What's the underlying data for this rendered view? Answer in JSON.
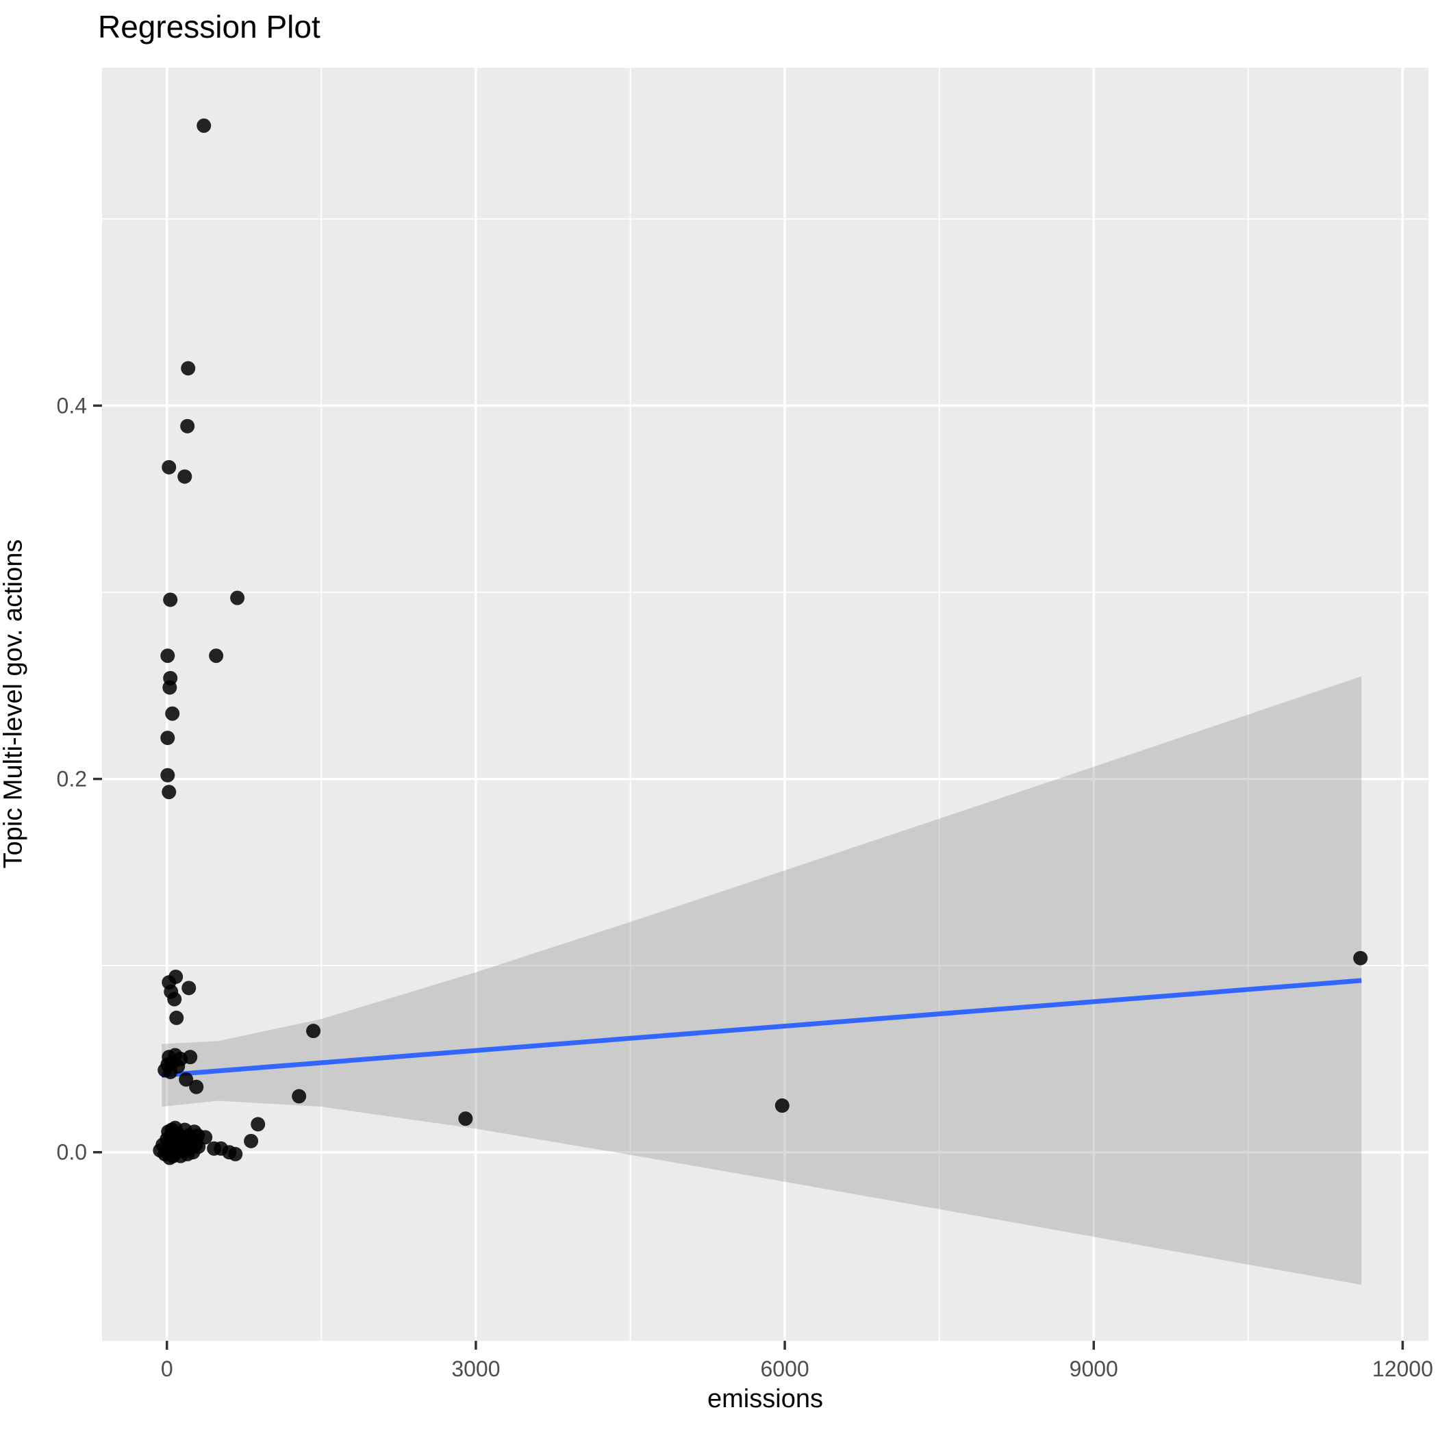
{
  "page": {
    "background": "#FFFFFF"
  },
  "chart_data": {
    "type": "scatter",
    "title": "Regression Plot",
    "xlabel": "emissions",
    "ylabel": "Topic Multi-level gov. actions",
    "legend": "none",
    "grid": "on",
    "x_axis": {
      "range": [
        -630,
        12250
      ],
      "ticks": [
        {
          "value": 0,
          "label": "0"
        },
        {
          "value": 3000,
          "label": "3000"
        },
        {
          "value": 6000,
          "label": "6000"
        },
        {
          "value": 9000,
          "label": "9000"
        },
        {
          "value": 12000,
          "label": "12000"
        }
      ],
      "minor_ticks": [
        1500,
        4500,
        7500,
        10500
      ]
    },
    "y_axis": {
      "range": [
        -0.101,
        0.581
      ],
      "ticks": [
        {
          "value": 0.0,
          "label": "0.0"
        },
        {
          "value": 0.2,
          "label": "0.2"
        },
        {
          "value": 0.4,
          "label": "0.4"
        }
      ],
      "minor_ticks": [
        0.1,
        0.3,
        0.5
      ]
    },
    "points": [
      [
        359,
        0.55
      ],
      [
        206,
        0.42
      ],
      [
        199,
        0.389
      ],
      [
        20,
        0.367
      ],
      [
        173,
        0.362
      ],
      [
        33,
        0.296
      ],
      [
        684,
        0.297
      ],
      [
        7,
        0.266
      ],
      [
        478,
        0.266
      ],
      [
        33,
        0.254
      ],
      [
        27,
        0.249
      ],
      [
        53,
        0.235
      ],
      [
        7,
        0.222
      ],
      [
        7,
        0.202
      ],
      [
        20,
        0.193
      ],
      [
        86,
        0.094
      ],
      [
        20,
        0.091
      ],
      [
        213,
        0.088
      ],
      [
        40,
        0.086
      ],
      [
        73,
        0.082
      ],
      [
        93,
        0.072
      ],
      [
        1422,
        0.065
      ],
      [
        -20,
        0.044
      ],
      [
        7,
        0.047
      ],
      [
        20,
        0.051
      ],
      [
        33,
        0.043
      ],
      [
        53,
        0.048
      ],
      [
        80,
        0.052
      ],
      [
        106,
        0.046
      ],
      [
        133,
        0.05
      ],
      [
        226,
        0.051
      ],
      [
        186,
        0.039
      ],
      [
        286,
        0.035
      ],
      [
        1283,
        0.03
      ],
      [
        5975,
        0.025
      ],
      [
        2900,
        0.018
      ],
      [
        884,
        0.015
      ],
      [
        817,
        0.006
      ],
      [
        665,
        -0.001
      ],
      [
        11590,
        0.104
      ],
      [
        -66,
        0.001
      ],
      [
        -40,
        0.004
      ],
      [
        -20,
        -0.001
      ],
      [
        0,
        0.007
      ],
      [
        7,
        0.0
      ],
      [
        13,
        0.011
      ],
      [
        20,
        0.003
      ],
      [
        27,
        -0.003
      ],
      [
        33,
        0.008
      ],
      [
        40,
        0.001
      ],
      [
        47,
        0.012
      ],
      [
        53,
        0.005
      ],
      [
        60,
        -0.002
      ],
      [
        66,
        0.009
      ],
      [
        73,
        0.002
      ],
      [
        80,
        0.013
      ],
      [
        86,
        0.006
      ],
      [
        93,
        0.0
      ],
      [
        106,
        0.01
      ],
      [
        120,
        0.003
      ],
      [
        133,
        -0.002
      ],
      [
        146,
        0.008
      ],
      [
        160,
        0.001
      ],
      [
        173,
        0.012
      ],
      [
        186,
        0.005
      ],
      [
        200,
        -0.001
      ],
      [
        213,
        0.009
      ],
      [
        226,
        0.002
      ],
      [
        240,
        0.007
      ],
      [
        253,
        0.0
      ],
      [
        266,
        0.011
      ],
      [
        280,
        0.004
      ],
      [
        300,
        0.009
      ],
      [
        306,
        0.003
      ],
      [
        372,
        0.008
      ],
      [
        458,
        0.002
      ],
      [
        525,
        0.002
      ],
      [
        605,
        0.0
      ]
    ],
    "smooth": {
      "method": "lm",
      "line": {
        "x": [
          -50,
          11600
        ],
        "y": [
          0.0412,
          0.092
        ]
      },
      "ribbon": {
        "x": [
          -50,
          500,
          1500,
          3000,
          4500,
          6000,
          7500,
          9000,
          10300,
          11600
        ],
        "upper": [
          0.058,
          0.0596,
          0.0714,
          0.0964,
          0.1234,
          0.151,
          0.1787,
          0.2065,
          0.2308,
          0.255
        ],
        "lower": [
          0.0244,
          0.0276,
          0.0244,
          0.0126,
          -0.0014,
          -0.0158,
          -0.0305,
          -0.0453,
          -0.0582,
          -0.071
        ]
      }
    },
    "colors": {
      "panel_bg": "#EBEBEB",
      "grid": "#FFFFFF",
      "point": "#000000",
      "line": "#3366FF",
      "ribbon": "rgba(128,128,128,0.30)",
      "tick_mark": "#333333",
      "tick_label": "#4D4D4D",
      "text": "#000000"
    },
    "point_opacity": 0.85
  }
}
